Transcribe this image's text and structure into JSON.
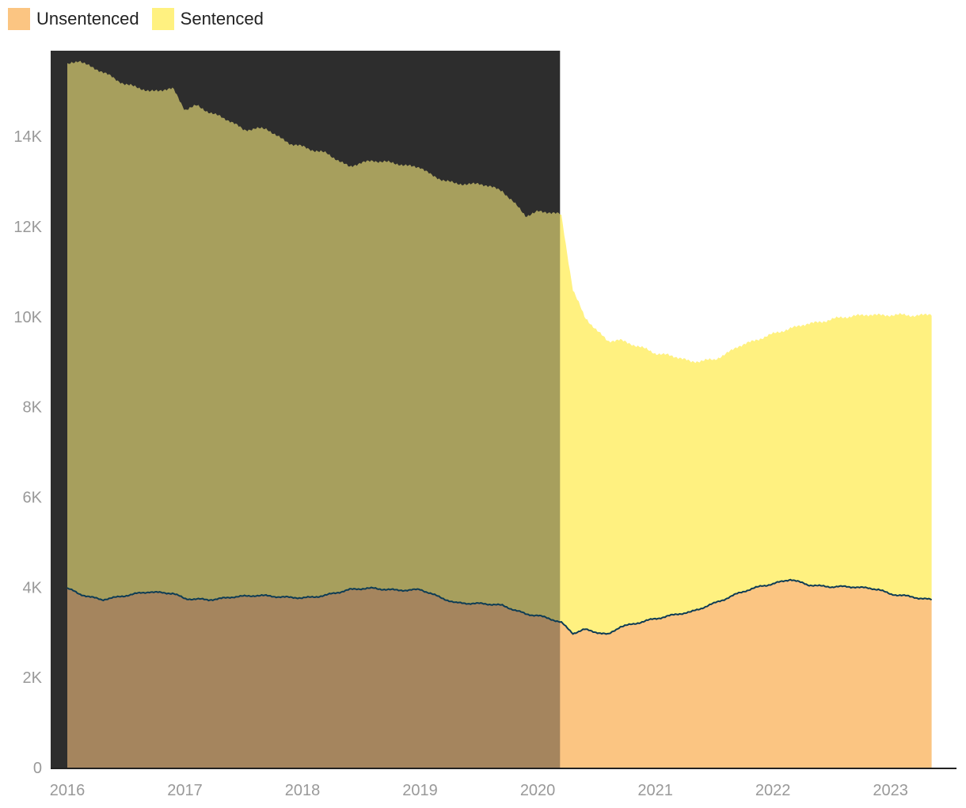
{
  "chart_data": {
    "type": "area",
    "stacked": true,
    "legend": {
      "placement": "top-left"
    },
    "series": [
      {
        "name": "Unsentenced",
        "color": "#fbc582",
        "x": [
          2016.0,
          2016.1,
          2016.3,
          2016.5,
          2016.7,
          2016.9,
          2017.0,
          2017.2,
          2017.4,
          2017.6,
          2017.8,
          2018.0,
          2018.2,
          2018.4,
          2018.6,
          2018.8,
          2019.0,
          2019.1,
          2019.3,
          2019.5,
          2019.7,
          2019.9,
          2020.0,
          2020.2,
          2020.3,
          2020.4,
          2020.6,
          2020.7,
          2020.9,
          2021.1,
          2021.3,
          2021.5,
          2021.7,
          2021.9,
          2022.0,
          2022.15,
          2022.3,
          2022.5,
          2022.7,
          2022.9,
          2023.0,
          2023.2,
          2023.35
        ],
        "values": [
          3980,
          3850,
          3720,
          3820,
          3900,
          3860,
          3750,
          3720,
          3780,
          3820,
          3790,
          3760,
          3820,
          3950,
          3980,
          3930,
          3950,
          3850,
          3650,
          3640,
          3600,
          3400,
          3380,
          3220,
          2980,
          3060,
          2950,
          3120,
          3240,
          3360,
          3450,
          3640,
          3860,
          4030,
          4070,
          4180,
          4050,
          4010,
          4010,
          3950,
          3850,
          3780,
          3720
        ]
      },
      {
        "name": "Sentenced",
        "color": "#fff180",
        "x": [
          2016.0,
          2016.1,
          2016.3,
          2016.5,
          2016.7,
          2016.9,
          2017.0,
          2017.1,
          2017.3,
          2017.5,
          2017.7,
          2017.9,
          2018.0,
          2018.2,
          2018.4,
          2018.6,
          2018.8,
          2019.0,
          2019.1,
          2019.3,
          2019.5,
          2019.7,
          2019.9,
          2020.0,
          2020.2,
          2020.3,
          2020.4,
          2020.6,
          2020.8,
          2021.0,
          2021.1,
          2021.3,
          2021.5,
          2021.7,
          2021.9,
          2022.0,
          2022.15,
          2022.3,
          2022.5,
          2022.7,
          2022.9,
          2023.0,
          2023.2,
          2023.35
        ],
        "values": [
          11600,
          11830,
          11700,
          11330,
          11100,
          11190,
          10850,
          10940,
          10700,
          10350,
          10350,
          10050,
          10010,
          9800,
          9380,
          9490,
          9460,
          9360,
          9280,
          9290,
          9310,
          9200,
          8830,
          8960,
          9050,
          7620,
          6920,
          6500,
          6220,
          5890,
          5800,
          5560,
          5400,
          5470,
          5500,
          5540,
          5570,
          5790,
          5930,
          6020,
          6090,
          6190,
          6250,
          6330
        ]
      }
    ],
    "xaxis": {
      "ticks": [
        2016,
        2017,
        2018,
        2019,
        2020,
        2021,
        2022,
        2023
      ],
      "tick_labels": [
        "2016",
        "2017",
        "2018",
        "2019",
        "2020",
        "2021",
        "2022",
        "2023"
      ],
      "range": [
        2016,
        2023.42
      ]
    },
    "yaxis": {
      "ticks": [
        0,
        2000,
        4000,
        6000,
        8000,
        10000,
        12000,
        14000
      ],
      "tick_labels": [
        "0",
        "2K",
        "4K",
        "6K",
        "8K",
        "10K",
        "12K",
        "14K"
      ],
      "range": [
        0,
        15900
      ]
    },
    "shaded_region": {
      "x_start": 2016.0,
      "x_end": 2020.19,
      "color": "#2d2d2d"
    },
    "boundary_line_color": "#0d3c55"
  }
}
